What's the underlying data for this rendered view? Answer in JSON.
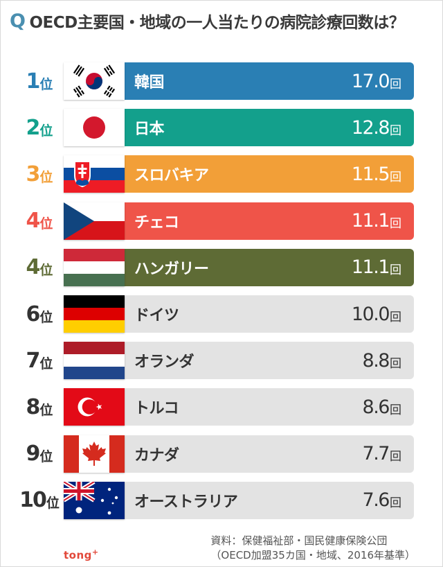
{
  "title": {
    "mark": "Q",
    "text": "OECD主要国・地域の一人当たりの病院診療回数は？"
  },
  "rank_suffix": "位",
  "unit": "回",
  "colors": {
    "highlight_text": "#ffffff",
    "normal_bar": "#e3e3e3",
    "normal_text": "#333333",
    "normal_rank": "#333333"
  },
  "chart_data": {
    "type": "bar",
    "orientation": "horizontal",
    "title": "OECD主要国・地域の一人当たりの病院診療回数は？",
    "categories": [
      "韓国",
      "日本",
      "スロバキア",
      "チェコ",
      "ハンガリー",
      "ドイツ",
      "オランダ",
      "トルコ",
      "カナダ",
      "オーストラリア"
    ],
    "ranks": [
      "1",
      "2",
      "3",
      "4",
      "4",
      "6",
      "7",
      "8",
      "9",
      "10"
    ],
    "values": [
      17.0,
      12.8,
      11.5,
      11.1,
      11.1,
      10.0,
      8.8,
      8.6,
      7.7,
      7.6
    ],
    "value_labels": [
      "17.0",
      "12.8",
      "11.5",
      "11.1",
      "11.1",
      "10.0",
      "8.8",
      "8.6",
      "7.7",
      "7.6"
    ],
    "unit": "回",
    "flags": [
      "south-korea-flag",
      "japan-flag",
      "slovakia-flag",
      "czech-flag",
      "hungary-flag",
      "germany-flag",
      "netherlands-flag",
      "turkey-flag",
      "canada-flag",
      "australia-flag"
    ],
    "bar_colors": [
      "#2a7fb4",
      "#13a08c",
      "#f29f38",
      "#ef5449",
      "#5e6b35",
      "#e3e3e3",
      "#e3e3e3",
      "#e3e3e3",
      "#e3e3e3",
      "#e3e3e3"
    ],
    "rank_colors": [
      "#2a7fb4",
      "#13a08c",
      "#f29f38",
      "#ef5449",
      "#5e6b35",
      "#333333",
      "#333333",
      "#333333",
      "#333333",
      "#333333"
    ],
    "highlighted": [
      true,
      true,
      true,
      true,
      true,
      false,
      false,
      false,
      false,
      false
    ]
  },
  "source": {
    "line1": "資料：保健福祉部・国民健康保険公団",
    "line2": "（OECD加盟35カ国・地域、2016年基準）"
  },
  "logo": {
    "text": "tong",
    "mark": "+"
  }
}
